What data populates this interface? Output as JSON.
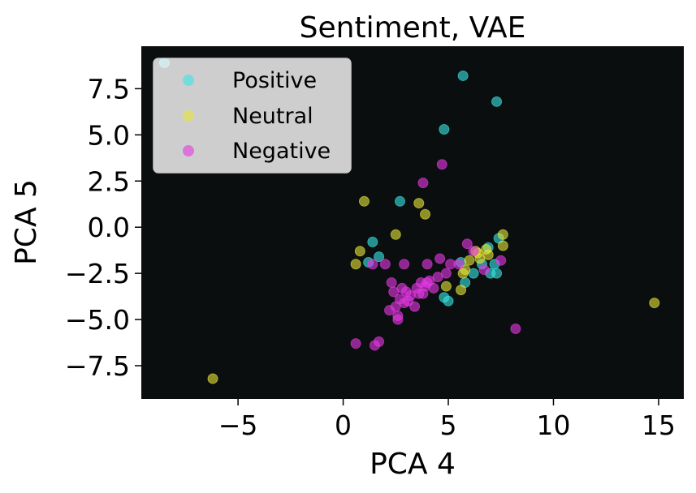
{
  "chart_data": {
    "type": "scatter",
    "title": "Sentiment, VAE",
    "xlabel": "PCA 4",
    "ylabel": "PCA 5",
    "xlim": [
      -9.6,
      16.2
    ],
    "ylim": [
      -9.3,
      9.8
    ],
    "xticks": [
      -5,
      0,
      5,
      10,
      15
    ],
    "xtick_labels": [
      "−5",
      "0",
      "5",
      "10",
      "15"
    ],
    "yticks": [
      7.5,
      5.0,
      2.5,
      0.0,
      -2.5,
      -5.0,
      -7.5
    ],
    "ytick_labels": [
      "7.5",
      "5.0",
      "2.5",
      "0.0",
      "−2.5",
      "−5.0",
      "−7.5"
    ],
    "background": "#0a0e0e",
    "grid": false,
    "legend_position": "top-left",
    "series": [
      {
        "name": "Positive",
        "color": "#38e6e6",
        "points": [
          [
            -8.5,
            8.9
          ],
          [
            5.7,
            8.2
          ],
          [
            7.3,
            6.8
          ],
          [
            4.8,
            5.3
          ],
          [
            2.7,
            1.4
          ],
          [
            1.4,
            -0.8
          ],
          [
            1.7,
            -1.6
          ],
          [
            1.2,
            -1.9
          ],
          [
            4.8,
            -3.8
          ],
          [
            5.0,
            -4.0
          ],
          [
            6.2,
            -2.5
          ],
          [
            6.6,
            -2.0
          ],
          [
            7.0,
            -2.5
          ],
          [
            7.3,
            -2.5
          ],
          [
            7.2,
            -2.0
          ],
          [
            6.9,
            -1.1
          ],
          [
            7.4,
            -0.6
          ],
          [
            5.8,
            -3.0
          ],
          [
            5.6,
            -1.9
          ]
        ]
      },
      {
        "name": "Neutral",
        "color": "#e6e638",
        "points": [
          [
            -6.2,
            -8.2
          ],
          [
            14.8,
            -4.1
          ],
          [
            1.0,
            1.4
          ],
          [
            3.6,
            1.3
          ],
          [
            3.9,
            0.7
          ],
          [
            2.5,
            -0.4
          ],
          [
            0.8,
            -1.3
          ],
          [
            0.6,
            -2.0
          ],
          [
            7.6,
            -0.4
          ],
          [
            7.6,
            -1.0
          ],
          [
            6.9,
            -1.5
          ],
          [
            6.8,
            -1.2
          ],
          [
            6.3,
            -1.3
          ],
          [
            6.0,
            -1.8
          ],
          [
            5.8,
            -2.3
          ],
          [
            5.7,
            -2.5
          ],
          [
            5.6,
            -3.4
          ],
          [
            4.9,
            -3.2
          ],
          [
            6.4,
            -1.4
          ],
          [
            6.5,
            -1.7
          ]
        ]
      },
      {
        "name": "Negative",
        "color": "#e638e6",
        "points": [
          [
            4.7,
            3.4
          ],
          [
            3.8,
            2.4
          ],
          [
            0.6,
            -6.3
          ],
          [
            1.5,
            -6.4
          ],
          [
            1.7,
            -6.2
          ],
          [
            8.2,
            -5.5
          ],
          [
            1.4,
            -2.0
          ],
          [
            2.0,
            -2.0
          ],
          [
            2.9,
            -2.0
          ],
          [
            4.0,
            -2.0
          ],
          [
            2.3,
            -3.0
          ],
          [
            2.4,
            -3.5
          ],
          [
            2.7,
            -3.9
          ],
          [
            2.5,
            -4.3
          ],
          [
            2.2,
            -4.5
          ],
          [
            2.6,
            -4.8
          ],
          [
            2.6,
            -5.0
          ],
          [
            2.9,
            -4.1
          ],
          [
            3.1,
            -4.0
          ],
          [
            3.4,
            -4.3
          ],
          [
            3.2,
            -3.7
          ],
          [
            3.5,
            -3.3
          ],
          [
            3.7,
            -3.0
          ],
          [
            3.9,
            -3.2
          ],
          [
            4.1,
            -2.9
          ],
          [
            4.3,
            -3.3
          ],
          [
            3.8,
            -3.6
          ],
          [
            4.5,
            -2.7
          ],
          [
            4.9,
            -2.5
          ],
          [
            4.6,
            -1.7
          ],
          [
            5.1,
            -2.0
          ],
          [
            5.5,
            -2.0
          ],
          [
            5.9,
            -0.9
          ],
          [
            6.2,
            -1.3
          ],
          [
            7.5,
            -1.8
          ],
          [
            6.7,
            -2.3
          ],
          [
            3.6,
            -3.6
          ],
          [
            3.0,
            -3.5
          ],
          [
            4.0,
            -3.0
          ],
          [
            2.8,
            -3.3
          ]
        ]
      }
    ]
  }
}
